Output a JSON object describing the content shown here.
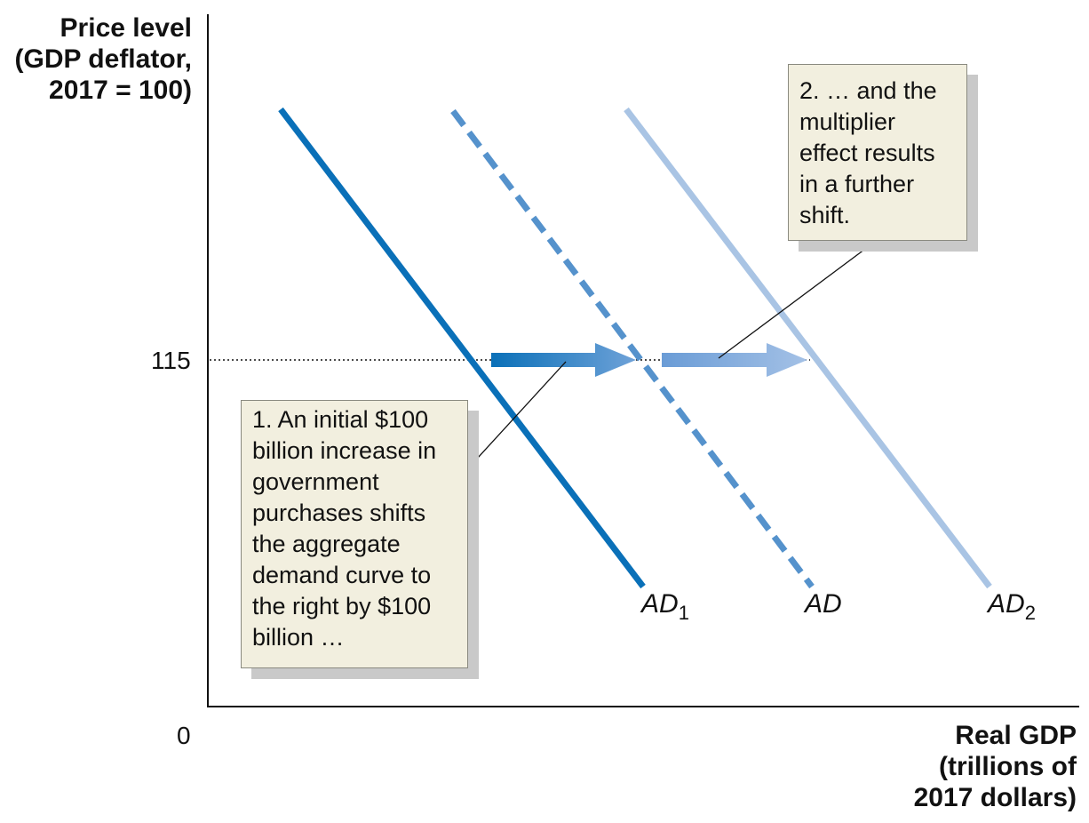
{
  "chart_data": {
    "type": "line",
    "title": "",
    "ylabel_lines": [
      "Price level",
      "(GDP deflator,",
      "2017 = 100)"
    ],
    "xlabel_lines": [
      "Real GDP",
      "(trillions of",
      "2017 dollars)"
    ],
    "origin_label": "0",
    "y_tick": {
      "value": 115,
      "label": "115"
    },
    "series": [
      {
        "name": "AD",
        "sub": "1",
        "style": "solid",
        "color": "#0a70b8"
      },
      {
        "name": "AD",
        "sub": "",
        "style": "dashed",
        "color": "#5592cc"
      },
      {
        "name": "AD",
        "sub": "2",
        "style": "solid",
        "color": "#a9c4e4"
      }
    ],
    "arrows": [
      {
        "from_series": 0,
        "to_series": 1,
        "gradient": [
          "#0a70b8",
          "#6fa2d8"
        ]
      },
      {
        "from_series": 1,
        "to_series": 2,
        "gradient": [
          "#6a9cd6",
          "#a4c1e6"
        ]
      }
    ],
    "annotations": [
      {
        "lines": [
          "1. An initial $100",
          "billion increase in",
          "government",
          "purchases shifts",
          "the aggregate",
          "demand curve to",
          "the right by $100",
          "billion …"
        ]
      },
      {
        "lines": [
          "2. … and the",
          "multiplier",
          "effect results",
          "in a further",
          "shift."
        ]
      }
    ]
  },
  "colors": {
    "axis": "#111111",
    "callout_bg": "#f2efdf",
    "callout_shadow": "#c9c9c9"
  }
}
